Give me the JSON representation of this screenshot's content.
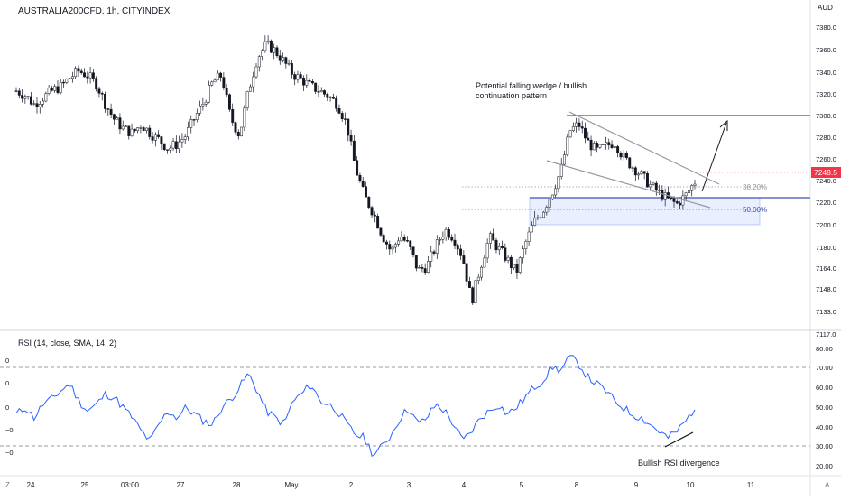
{
  "header": {
    "symbol_title": "AUSTRALIA200CFD, 1h, CITYINDEX",
    "currency": "AUD"
  },
  "price_panel": {
    "price_axis_ticks": [
      "7380.0",
      "7360.0",
      "7340.0",
      "7320.0",
      "7300.0",
      "7280.0",
      "7260.0",
      "7240.0",
      "7220.0",
      "7200.0",
      "7180.0",
      "7164.0",
      "7148.0",
      "7133.0",
      "7117.0"
    ],
    "last_price_label": "7248.5",
    "last_price_color": "#f23645",
    "annotation_text_line1": "Potential falling wedge / bullish",
    "annotation_text_line2": "continuation pattern",
    "fib_382_label": "38.20%",
    "fib_50_label": "50.00%"
  },
  "rsi_panel": {
    "title": "RSI (14, close, SMA, 14, 2)",
    "right_axis_ticks": [
      "80.00",
      "70.00",
      "60.00",
      "50.00",
      "40.00",
      "30.00",
      "20.00"
    ],
    "left_axis_ticks": [
      "0",
      "0",
      "0",
      "−0",
      "−0"
    ],
    "divergence_label": "Bullish RSI divergence",
    "line_color": "#2962ff"
  },
  "time_axis": {
    "labels": [
      "24",
      "25",
      "03:00",
      "27",
      "28",
      "May",
      "2",
      "3",
      "4",
      "5",
      "8",
      "9",
      "10",
      "11"
    ]
  },
  "footer_icons": {
    "left": "Z",
    "right": "A"
  },
  "chart_data": [
    {
      "type": "candlestick",
      "title": "AUSTRALIA200CFD, 1h, CITYINDEX",
      "ylabel": "AUD",
      "ylim": [
        7110,
        7390
      ],
      "x_labels": [
        "24",
        "25",
        "03:00",
        "27",
        "28",
        "May",
        "2",
        "3",
        "4",
        "5",
        "8",
        "9",
        "10",
        "11"
      ],
      "approx_close_path": [
        7330,
        7326,
        7318,
        7324,
        7330,
        7334,
        7342,
        7348,
        7344,
        7336,
        7318,
        7304,
        7296,
        7292,
        7300,
        7292,
        7286,
        7278,
        7282,
        7290,
        7306,
        7320,
        7338,
        7344,
        7306,
        7290,
        7330,
        7360,
        7372,
        7366,
        7356,
        7345,
        7340,
        7334,
        7330,
        7325,
        7318,
        7300,
        7260,
        7235,
        7220,
        7200,
        7185,
        7200,
        7190,
        7168,
        7172,
        7190,
        7205,
        7198,
        7180,
        7140,
        7172,
        7198,
        7188,
        7178,
        7166,
        7192,
        7212,
        7222,
        7238,
        7258,
        7294,
        7300,
        7284,
        7276,
        7280,
        7284,
        7270,
        7262,
        7254,
        7245,
        7238,
        7232,
        7228,
        7236,
        7248
      ],
      "last_price": 7248.5,
      "wedge_upper_line": [
        [
          7300,
          7298
        ],
        [
          7292,
          7245
        ]
      ],
      "wedge_lower_line": [
        [
          7258,
          7258
        ],
        [
          7250,
          7222
        ]
      ],
      "resistance_level": 7300,
      "support_level": 7226,
      "fib_levels": [
        {
          "label": "38.20%",
          "value": 7236
        },
        {
          "label": "50.00%",
          "value": 7216
        }
      ],
      "support_zone": [
        7202,
        7226
      ],
      "projected_target": 7294
    },
    {
      "type": "line",
      "title": "RSI (14, close, SMA, 14, 2)",
      "ylim": [
        15,
        85
      ],
      "levels": [
        70,
        30
      ],
      "values": [
        46,
        50,
        44,
        52,
        55,
        60,
        64,
        54,
        48,
        52,
        58,
        56,
        50,
        44,
        36,
        30,
        40,
        48,
        44,
        50,
        46,
        42,
        40,
        50,
        55,
        62,
        70,
        60,
        48,
        44,
        40,
        54,
        58,
        64,
        54,
        52,
        48,
        40,
        34,
        32,
        22,
        27,
        34,
        44,
        50,
        40,
        44,
        52,
        48,
        40,
        30,
        36,
        44,
        48,
        52,
        46,
        50,
        56,
        62,
        66,
        74,
        72,
        80,
        76,
        68,
        64,
        60,
        54,
        50,
        46,
        44,
        40,
        36,
        32,
        36,
        42,
        50
      ]
    }
  ]
}
